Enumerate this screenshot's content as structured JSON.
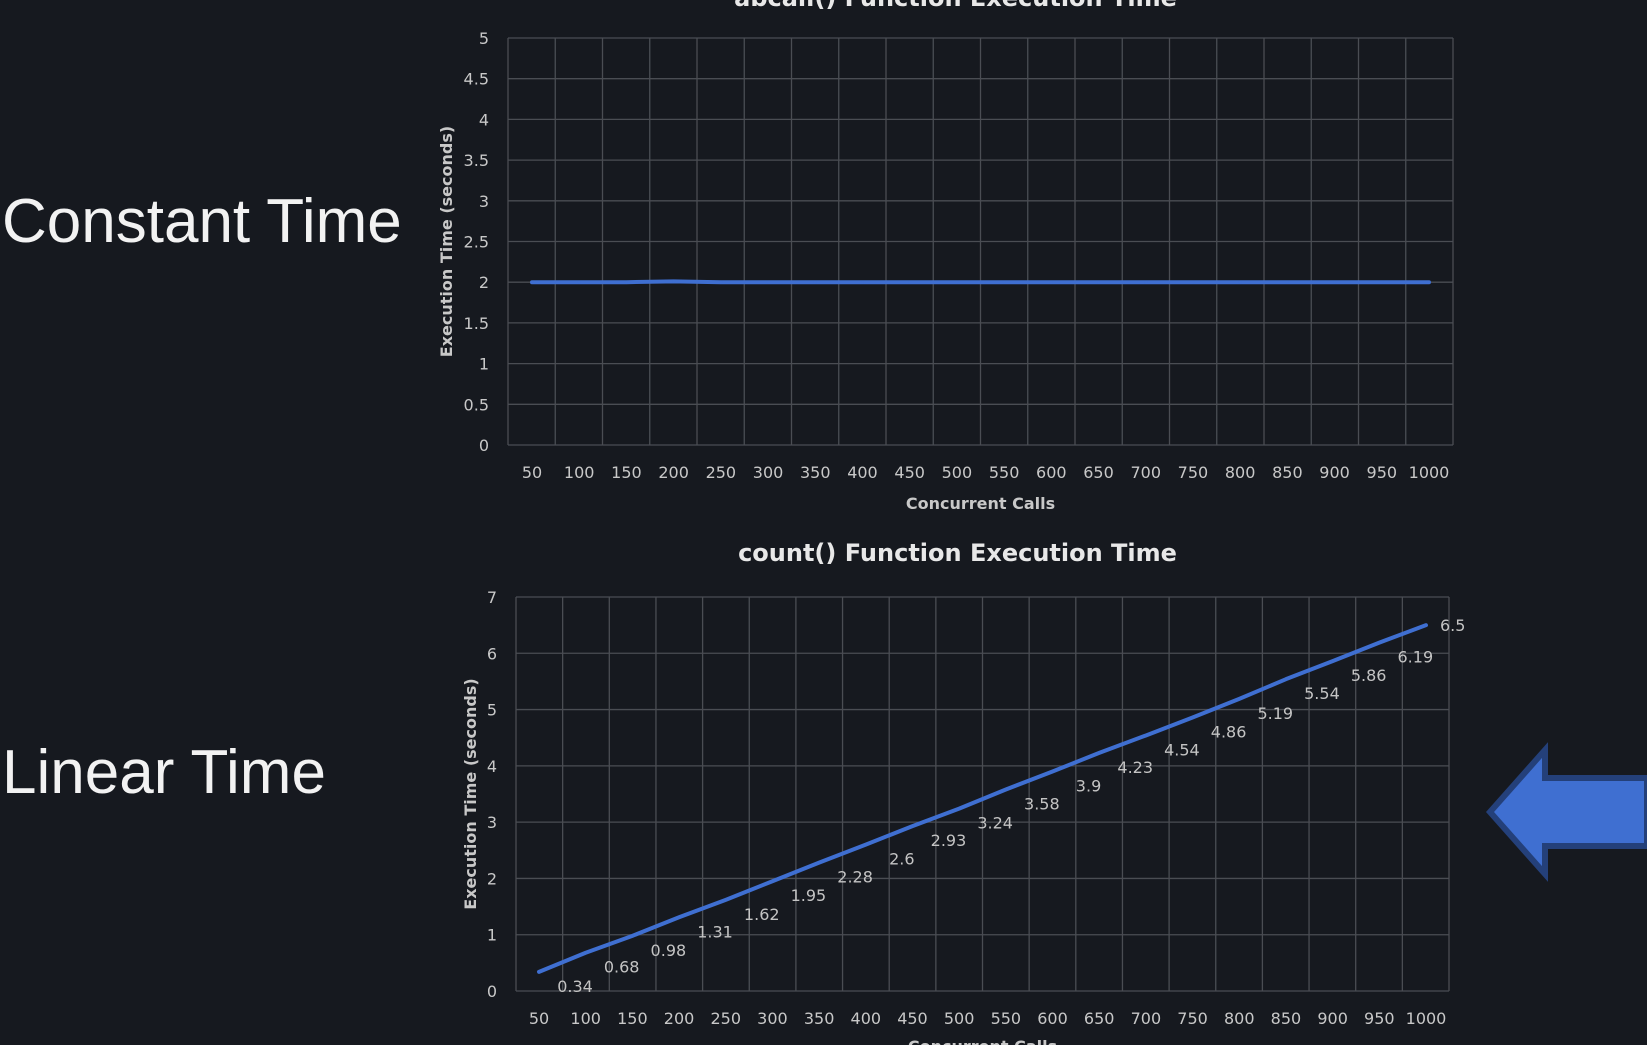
{
  "left_labels": {
    "constant": "Constant Time",
    "linear": "Linear Time"
  },
  "arrow": {
    "icon": "left-arrow-icon",
    "color": "#3f6fd1"
  },
  "chart_data": [
    {
      "type": "line",
      "title": "abcall() Function Execution Time",
      "xlabel": "Concurrent Calls",
      "ylabel": "Execution Time (seconds)",
      "categories": [
        "50",
        "100",
        "150",
        "200",
        "250",
        "300",
        "350",
        "400",
        "450",
        "500",
        "550",
        "600",
        "650",
        "700",
        "750",
        "800",
        "850",
        "900",
        "950",
        "1000"
      ],
      "series": [
        {
          "values": [
            2,
            2,
            2,
            2.01,
            2,
            2,
            2,
            2,
            2,
            2,
            2,
            2,
            2,
            2,
            2,
            2,
            2,
            2,
            2,
            2
          ],
          "color": "#3f6fd1"
        }
      ],
      "ylim": [
        0,
        5
      ],
      "yticks": [
        "0",
        "0.5",
        "1",
        "1.5",
        "2",
        "2.5",
        "3",
        "3.5",
        "4",
        "4.5",
        "5"
      ],
      "grid": true,
      "legend": "none"
    },
    {
      "type": "line",
      "title": "count() Function Execution Time",
      "xlabel": "Concurrent Calls",
      "ylabel": "Execution Time (seconds)",
      "categories": [
        "50",
        "100",
        "150",
        "200",
        "250",
        "300",
        "350",
        "400",
        "450",
        "500",
        "550",
        "600",
        "650",
        "700",
        "750",
        "800",
        "850",
        "900",
        "950",
        "1000"
      ],
      "series": [
        {
          "values": [
            0.34,
            0.68,
            0.98,
            1.31,
            1.62,
            1.95,
            2.28,
            2.6,
            2.93,
            3.24,
            3.58,
            3.9,
            4.23,
            4.54,
            4.86,
            5.19,
            5.54,
            5.86,
            6.19,
            6.5
          ],
          "color": "#3f6fd1"
        }
      ],
      "data_labels": [
        "0.34",
        "0.68",
        "0.98",
        "1.31",
        "1.62",
        "1.95",
        "2.28",
        "2.6",
        "2.93",
        "3.24",
        "3.58",
        "3.9",
        "4.23",
        "4.54",
        "4.86",
        "5.19",
        "5.54",
        "5.86",
        "6.19",
        "6.5"
      ],
      "ylim": [
        0,
        7
      ],
      "yticks": [
        "0",
        "1",
        "2",
        "3",
        "4",
        "5",
        "6",
        "7"
      ],
      "grid": true,
      "legend": "none"
    }
  ]
}
